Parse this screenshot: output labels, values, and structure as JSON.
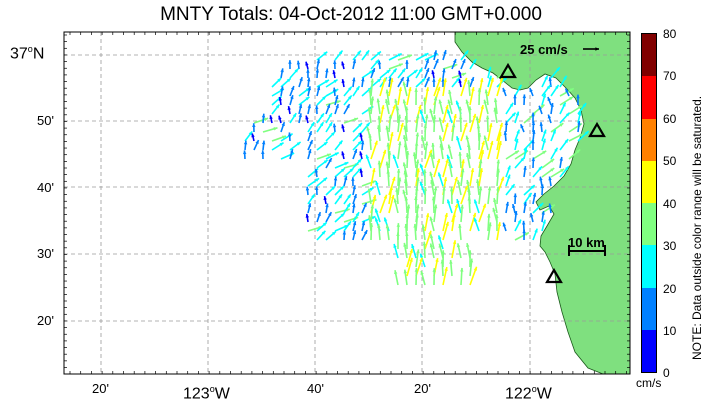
{
  "title": "MNTY Totals: 04-Oct-2012 11:00 GMT+0.000",
  "lat_labels": [
    {
      "value": "37",
      "suffix": "N",
      "major": true
    },
    {
      "value": "50'",
      "suffix": "",
      "major": false
    },
    {
      "value": "40'",
      "suffix": "",
      "major": false
    },
    {
      "value": "30'",
      "suffix": "",
      "major": false
    },
    {
      "value": "20'",
      "suffix": "",
      "major": false
    }
  ],
  "lon_labels": [
    {
      "text": "20'",
      "major": false
    },
    {
      "text": "123",
      "suffix": "W",
      "major": true
    },
    {
      "text": "40'",
      "major": false
    },
    {
      "text": "20'",
      "major": false
    },
    {
      "text": "122",
      "suffix": "W",
      "major": true
    }
  ],
  "reference_vector": {
    "label": "25 cm/s",
    "speed_cms": 25
  },
  "scale_bar": {
    "label": "10 km",
    "length_km": 10
  },
  "colorbar": {
    "unit": "cm/s",
    "note": "NOTE: Data outside color range will be saturated.",
    "ticks": [
      "80",
      "70",
      "60",
      "50",
      "40",
      "30",
      "20",
      "10",
      "0"
    ],
    "colors": [
      "#0000ff",
      "#0080ff",
      "#00ffff",
      "#80ff80",
      "#ffff00",
      "#ff8000",
      "#ff0000",
      "#800000"
    ]
  },
  "colors": {
    "land": "#7fe07f",
    "grid": "#9a9a9a",
    "frame": "#000000"
  },
  "stations": [
    "station-1",
    "station-2",
    "station-3",
    "station-4"
  ]
}
